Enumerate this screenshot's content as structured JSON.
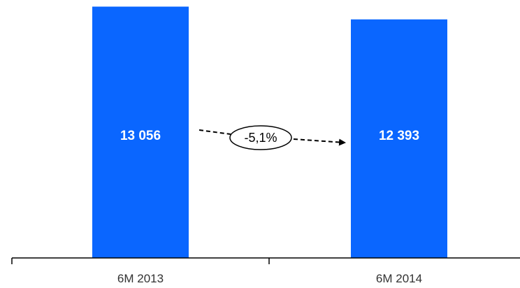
{
  "chart_data": {
    "type": "bar",
    "categories": [
      "6M 2013",
      "6M 2014"
    ],
    "values": [
      13056,
      12393
    ],
    "value_labels": [
      "13 056",
      "12 393"
    ],
    "annotation": "-5,1%",
    "ylim": [
      0,
      13400
    ],
    "grid": false,
    "legend": "none",
    "bar_color": "#0a66ff",
    "axis_color": "#000000"
  }
}
